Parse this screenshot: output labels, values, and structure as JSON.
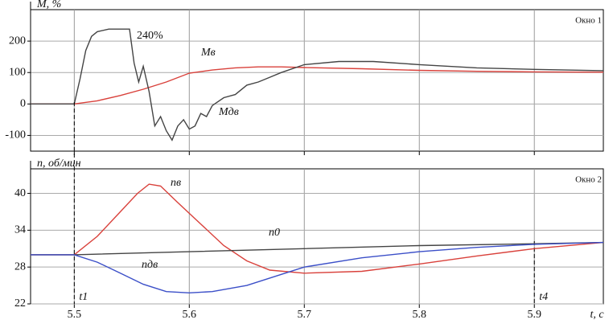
{
  "chart_data": [
    {
      "type": "line",
      "title": "Окно 1",
      "ylabel": "M, %",
      "annotation": "240%",
      "xlim": [
        5.462,
        5.96
      ],
      "ylim": [
        -150,
        300
      ],
      "xticks": [
        5.5,
        5.6,
        5.7,
        5.8,
        5.9
      ],
      "yticks": [
        -100,
        0,
        100,
        200
      ],
      "grid": true,
      "series": [
        {
          "name": "Mв",
          "color": "#d9413b",
          "x": [
            5.462,
            5.5,
            5.52,
            5.54,
            5.56,
            5.58,
            5.6,
            5.62,
            5.64,
            5.66,
            5.68,
            5.7,
            5.75,
            5.8,
            5.85,
            5.9,
            5.96
          ],
          "values": [
            0,
            0,
            10,
            27,
            47,
            70,
            98,
            108,
            115,
            118,
            118,
            116,
            112,
            107,
            104,
            102,
            101
          ]
        },
        {
          "name": "Mдв",
          "color": "#444444",
          "x": [
            5.462,
            5.5,
            5.505,
            5.51,
            5.515,
            5.52,
            5.53,
            5.54,
            5.548,
            5.552,
            5.556,
            5.56,
            5.565,
            5.57,
            5.575,
            5.58,
            5.585,
            5.59,
            5.595,
            5.6,
            5.605,
            5.61,
            5.615,
            5.62,
            5.63,
            5.64,
            5.65,
            5.66,
            5.67,
            5.68,
            5.7,
            5.73,
            5.76,
            5.8,
            5.85,
            5.9,
            5.96
          ],
          "values": [
            0,
            0,
            80,
            170,
            215,
            230,
            238,
            238,
            238,
            130,
            70,
            120,
            40,
            -70,
            -40,
            -85,
            -115,
            -70,
            -50,
            -80,
            -70,
            -30,
            -40,
            -5,
            20,
            30,
            60,
            70,
            85,
            100,
            125,
            135,
            135,
            125,
            115,
            110,
            106
          ]
        }
      ]
    },
    {
      "type": "line",
      "title": "Окно 2",
      "ylabel": "n, об/мин",
      "xlabel": "t, c",
      "xlim": [
        5.462,
        5.96
      ],
      "ylim": [
        22,
        44
      ],
      "xticks": [
        5.5,
        5.6,
        5.7,
        5.8,
        5.9
      ],
      "yticks": [
        22,
        28,
        34,
        40
      ],
      "grid": true,
      "markers": [
        {
          "label": "t1",
          "x": 5.5
        },
        {
          "label": "t4",
          "x": 5.9
        }
      ],
      "series": [
        {
          "name": "nв",
          "color": "#d9413b",
          "x": [
            5.462,
            5.5,
            5.52,
            5.54,
            5.555,
            5.565,
            5.575,
            5.59,
            5.61,
            5.63,
            5.65,
            5.67,
            5.7,
            5.75,
            5.8,
            5.85,
            5.9,
            5.96
          ],
          "values": [
            30,
            30,
            33,
            37,
            40,
            41.5,
            41.2,
            38.5,
            35,
            31.5,
            29,
            27.5,
            27,
            27.3,
            28.5,
            29.8,
            31,
            32
          ]
        },
        {
          "name": "n0",
          "color": "#444444",
          "x": [
            5.462,
            5.5,
            5.6,
            5.7,
            5.8,
            5.9,
            5.96
          ],
          "values": [
            30,
            30,
            30.5,
            31,
            31.5,
            31.8,
            32
          ]
        },
        {
          "name": "nдв",
          "color": "#3b4fc8",
          "x": [
            5.462,
            5.5,
            5.52,
            5.54,
            5.56,
            5.58,
            5.6,
            5.62,
            5.65,
            5.68,
            5.7,
            5.75,
            5.8,
            5.85,
            5.9,
            5.96
          ],
          "values": [
            30,
            30,
            28.8,
            27,
            25.2,
            24,
            23.8,
            24,
            25,
            26.8,
            28,
            29.5,
            30.5,
            31.2,
            31.7,
            32
          ]
        }
      ]
    }
  ]
}
